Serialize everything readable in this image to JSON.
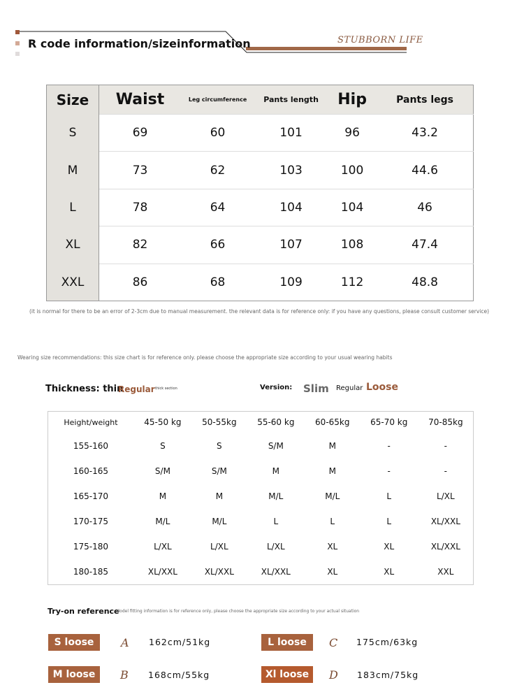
{
  "header": {
    "title": "R code information/sizeinformation",
    "brand": "STUBBORN LIFE",
    "colors": {
      "accent": "#a06848",
      "square1": "#a0583a",
      "square2": "#d3a996",
      "square3": "#e0dcdc"
    }
  },
  "size_table": {
    "headers": [
      "Size",
      "Waist",
      "Leg circumference",
      "Pants length",
      "Hip",
      "Pants legs"
    ],
    "rows": [
      [
        "S",
        "69",
        "60",
        "101",
        "96",
        "43.2"
      ],
      [
        "M",
        "73",
        "62",
        "103",
        "100",
        "44.6"
      ],
      [
        "L",
        "78",
        "64",
        "104",
        "104",
        "46"
      ],
      [
        "XL",
        "82",
        "66",
        "107",
        "108",
        "47.4"
      ],
      [
        "XXL",
        "86",
        "68",
        "109",
        "112",
        "48.8"
      ]
    ]
  },
  "note1": "(it is normal for there to be an error of 2-3cm due to manual measurement. the relevant data is for reference only: if you have any questions, please consult customer service)",
  "note2": "Wearing size recommendations: this size chart is for reference only. please choose the appropriate size according to your usual wearing habits",
  "thickness": {
    "label": "Thickness: thin",
    "regular": "Regular",
    "thick": "thick section"
  },
  "version": {
    "label": "Version:",
    "slim": "Slim",
    "regular": "Regular",
    "loose": "Loose"
  },
  "rec_table": {
    "headers": [
      "Height/weight",
      "45-50 kg",
      "50-55kg",
      "55-60 kg",
      "60-65kg",
      "65-70 kg",
      "70-85kg"
    ],
    "rows": [
      [
        "155-160",
        "S",
        "S",
        "S/M",
        "M",
        "-",
        "-"
      ],
      [
        "160-165",
        "S/M",
        "S/M",
        "M",
        "M",
        "-",
        "-"
      ],
      [
        "165-170",
        "M",
        "M",
        "M/L",
        "M/L",
        "L",
        "L/XL"
      ],
      [
        "170-175",
        "M/L",
        "M/L",
        "L",
        "L",
        "L",
        "XL/XXL"
      ],
      [
        "175-180",
        "L/XL",
        "L/XL",
        "L/XL",
        "XL",
        "XL",
        "XL/XXL"
      ],
      [
        "180-185",
        "XL/XXL",
        "XL/XXL",
        "XL/XXL",
        "XL",
        "XL",
        "XXL"
      ]
    ]
  },
  "tryon": {
    "title": "Try-on reference",
    "subtitle": "Model fitting information is for reference only, please choose the appropriate size according to your actual situation",
    "models": [
      {
        "size": "S loose",
        "letter": "A",
        "hw": "162cm/51kg"
      },
      {
        "size": "M loose",
        "letter": "B",
        "hw": "168cm/55kg"
      },
      {
        "size": "L loose",
        "letter": "C",
        "hw": "175cm/63kg"
      },
      {
        "size": "Xl loose",
        "letter": "D",
        "hw": "183cm/75kg"
      }
    ]
  }
}
